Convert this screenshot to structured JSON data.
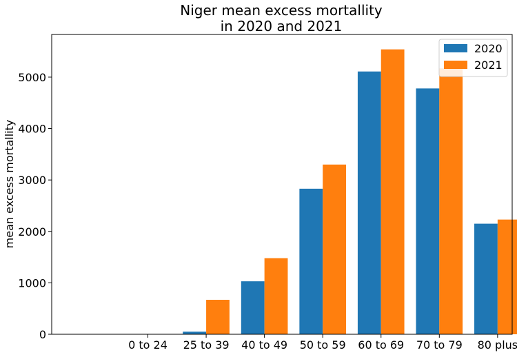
{
  "chart_data": {
    "type": "bar",
    "title_line1": "Niger mean excess mortallity",
    "title_line2": "in 2020 and 2021",
    "xlabel": "",
    "ylabel": "mean excess mortallity",
    "categories": [
      "0 to 24",
      "25 to 39",
      "40 to 49",
      "50 to 59",
      "60 to 69",
      "70 to 79",
      "80 plus"
    ],
    "series": [
      {
        "name": "2020",
        "color": "#1f77b4",
        "values": [
          0,
          50,
          1030,
          2830,
          5110,
          4780,
          2150
        ]
      },
      {
        "name": "2021",
        "color": "#ff7f0e",
        "values": [
          0,
          670,
          1480,
          3300,
          5540,
          5170,
          2230
        ]
      }
    ],
    "ylim": [
      0,
      5830
    ],
    "yticks": [
      0,
      1000,
      2000,
      3000,
      4000,
      5000
    ],
    "grid": false,
    "legend_position": "top-right"
  }
}
